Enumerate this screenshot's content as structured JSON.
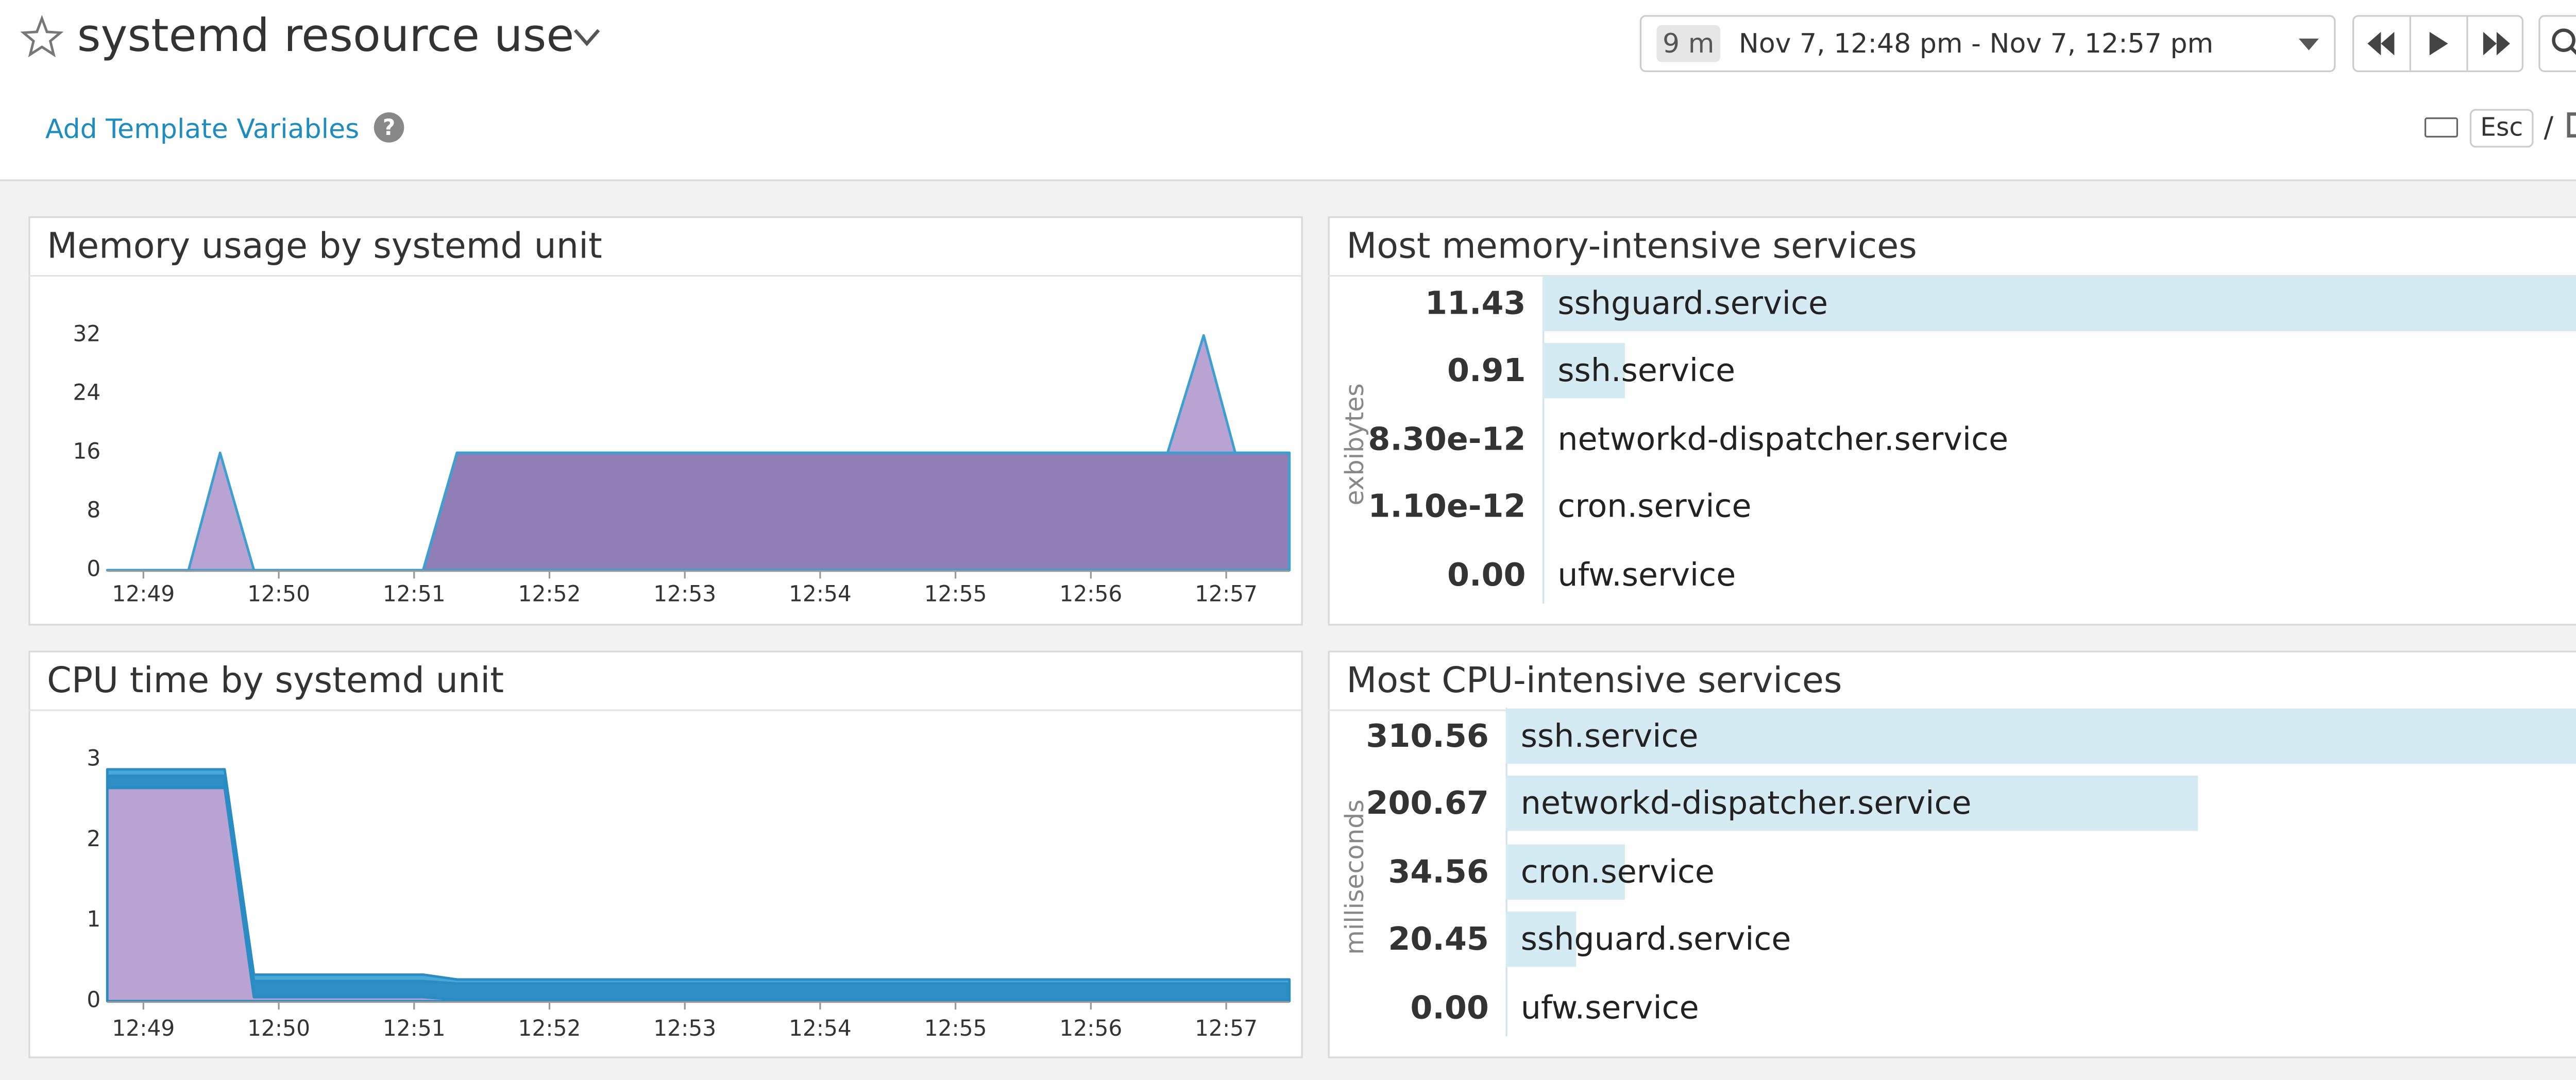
{
  "header": {
    "title": "systemd resource use",
    "time_span": "9 m",
    "time_range": "Nov 7, 12:48 pm - Nov 7, 12:57 pm",
    "template_link": "Add Template Variables",
    "help": "?",
    "esc_key": "Esc",
    "separator": "/"
  },
  "chart_data": [
    {
      "type": "area",
      "title": "Memory usage by systemd unit",
      "x": [
        "12:48:44",
        "12:49:20",
        "12:49:34",
        "12:49:49",
        "12:51:04",
        "12:51:19",
        "12:56:34",
        "12:56:50",
        "12:57:04",
        "12:57:28"
      ],
      "series": [
        {
          "color": "#8f7db5",
          "values": [
            0,
            0,
            0,
            0,
            0,
            16,
            16,
            16,
            16,
            16
          ]
        },
        {
          "color": "#b9a3d2",
          "values": [
            0,
            0,
            16,
            0,
            0,
            0,
            0,
            16,
            0,
            0
          ]
        }
      ],
      "stacked": true,
      "line_color": "#3d9fd0",
      "xlim": [
        "12:48:44",
        "12:57:28"
      ],
      "xticks": [
        "12:49",
        "12:50",
        "12:51",
        "12:52",
        "12:53",
        "12:54",
        "12:55",
        "12:56",
        "12:57"
      ],
      "ylim": [
        0,
        40
      ],
      "yticks": [
        0,
        8,
        16,
        24,
        32
      ]
    },
    {
      "type": "bar",
      "title": "Most memory-intensive services",
      "y_label": "exbibytes",
      "categories": [
        "sshguard.service",
        "ssh.service",
        "networkd-dispatcher.service",
        "cron.service",
        "ufw.service"
      ],
      "values": [
        11.43,
        0.91,
        8.3e-12,
        1.1e-12,
        0
      ],
      "value_labels": [
        "11.43",
        "0.91",
        "8.30e-12",
        "1.10e-12",
        "0.00"
      ],
      "color": "#d5ebf3"
    },
    {
      "type": "area",
      "title": "CPU time by systemd unit",
      "x": [
        "12:48:44",
        "12:49:36",
        "12:49:49",
        "12:51:04",
        "12:51:19",
        "12:57:28"
      ],
      "series": [
        {
          "color": "#b9a3d2",
          "values": [
            2.65,
            2.65,
            0.05,
            0.05,
            0.02,
            0.02
          ]
        },
        {
          "color": "#2f8fc4",
          "values": [
            0.15,
            0.15,
            0.2,
            0.2,
            0.2,
            0.2
          ]
        },
        {
          "color": "#4aa8d8",
          "values": [
            0.08,
            0.08,
            0.08,
            0.08,
            0.05,
            0.05
          ]
        }
      ],
      "stacked": true,
      "line_color": "#2b8cc4",
      "xlim": [
        "12:48:44",
        "12:57:28"
      ],
      "xticks": [
        "12:49",
        "12:50",
        "12:51",
        "12:52",
        "12:53",
        "12:54",
        "12:55",
        "12:56",
        "12:57"
      ],
      "ylim": [
        0,
        3.5
      ],
      "yticks": [
        0,
        1,
        2,
        3
      ]
    },
    {
      "type": "bar",
      "title": "Most CPU-intensive services",
      "y_label": "milliseconds",
      "categories": [
        "ssh.service",
        "networkd-dispatcher.service",
        "cron.service",
        "sshguard.service",
        "ufw.service"
      ],
      "values": [
        310.56,
        200.67,
        34.56,
        20.45,
        0
      ],
      "value_labels": [
        "310.56",
        "200.67",
        "34.56",
        "20.45",
        "0.00"
      ],
      "color": "#d5ebf3"
    }
  ]
}
